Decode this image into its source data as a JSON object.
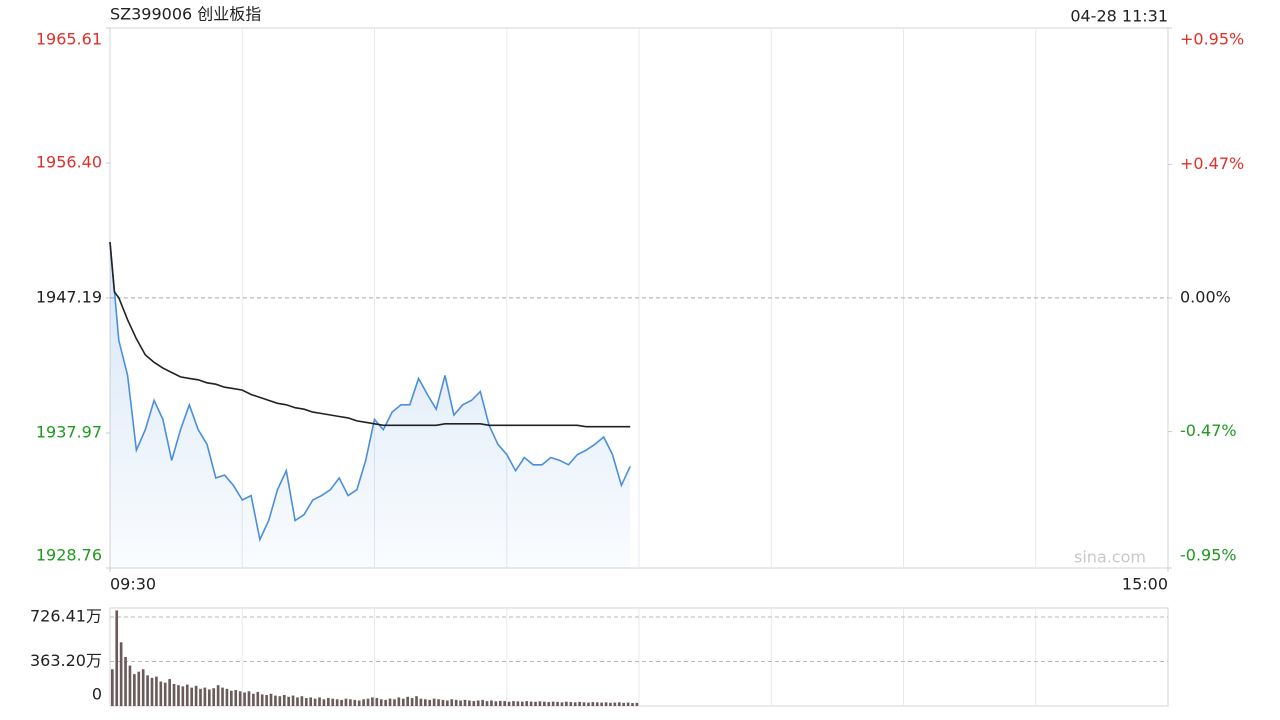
{
  "header": {
    "title": "SZ399006 创业板指",
    "timestamp": "04-28 11:31",
    "watermark": "sina.com"
  },
  "chart_data": [
    {
      "type": "line",
      "xlim": [
        0,
        240
      ],
      "xticks": [
        {
          "value": 0,
          "label": "09:30"
        },
        {
          "value": 240,
          "label": "15:00"
        }
      ],
      "ylim": [
        1928.76,
        1965.61
      ],
      "yticks": [
        1928.76,
        1937.97,
        1947.19,
        {
          "value": 1956.4,
          "label": "1956.40"
        },
        1965.61
      ],
      "ytick_colors": [
        "#1f9a1f",
        "#1f9a1f",
        "#222222",
        "#e0302a",
        "#e0302a"
      ],
      "y2lim": [
        -0.95,
        0.95
      ],
      "y2ticks": [
        {
          "value": -0.95,
          "label": "-0.95%"
        },
        {
          "value": -0.47,
          "label": "-0.47%"
        },
        {
          "value": 0,
          "label": "0.00%"
        },
        {
          "value": 0.47,
          "label": "+0.47%"
        },
        {
          "value": 0.95,
          "label": "+0.95%"
        }
      ],
      "x": [
        0,
        1,
        2,
        4,
        6,
        8,
        10,
        12,
        14,
        16,
        18,
        20,
        22,
        24,
        26,
        28,
        30,
        32,
        34,
        36,
        38,
        40,
        42,
        44,
        46,
        48,
        50,
        52,
        54,
        56,
        58,
        60,
        62,
        64,
        66,
        68,
        70,
        72,
        74,
        76,
        78,
        80,
        82,
        84,
        86,
        88,
        90,
        92,
        94,
        96,
        98,
        100,
        102,
        104,
        106,
        108,
        110,
        112,
        114,
        116,
        118
      ],
      "series": [
        {
          "color": "#4a8fdc",
          "area": true,
          "values": [
            1951.0,
            1947.7,
            1944.3,
            1941.9,
            1936.8,
            1938.2,
            1940.2,
            1938.9,
            1936.1,
            1938.2,
            1939.9,
            1938.2,
            1937.2,
            1934.9,
            1935.1,
            1934.4,
            1933.4,
            1933.7,
            1930.7,
            1932.0,
            1934.1,
            1935.4,
            1932.0,
            1932.4,
            1933.4,
            1933.7,
            1934.1,
            1934.9,
            1933.7,
            1934.1,
            1936.1,
            1938.9,
            1938.2,
            1939.4,
            1939.9,
            1939.9,
            1941.7,
            1940.6,
            1939.6,
            1941.9,
            1939.2,
            1939.9,
            1940.2,
            1940.8,
            1938.5,
            1937.2,
            1936.5,
            1935.4,
            1936.3,
            1935.8,
            1935.8,
            1936.3,
            1936.1,
            1935.8,
            1936.5,
            1936.8,
            1937.2,
            1937.7,
            1936.5,
            1934.4,
            1935.7
          ]
        },
        {
          "color": "#222222",
          "area": false,
          "values": [
            1951.0,
            1947.6,
            1947.2,
            1945.7,
            1944.4,
            1943.3,
            1942.8,
            1942.4,
            1942.1,
            1941.8,
            1941.7,
            1941.6,
            1941.4,
            1941.3,
            1941.1,
            1941.0,
            1940.9,
            1940.6,
            1940.4,
            1940.2,
            1940.0,
            1939.9,
            1939.7,
            1939.6,
            1939.4,
            1939.3,
            1939.2,
            1939.1,
            1939.0,
            1938.8,
            1938.7,
            1938.6,
            1938.5,
            1938.5,
            1938.5,
            1938.5,
            1938.5,
            1938.5,
            1938.5,
            1938.6,
            1938.6,
            1938.6,
            1938.6,
            1938.6,
            1938.5,
            1938.5,
            1938.5,
            1938.5,
            1938.5,
            1938.5,
            1938.5,
            1938.5,
            1938.5,
            1938.5,
            1938.5,
            1938.4,
            1938.4,
            1938.4,
            1938.4,
            1938.4,
            1938.4
          ]
        }
      ]
    },
    {
      "type": "bar",
      "xlim": [
        0,
        240
      ],
      "ylim": [
        0,
        800
      ],
      "yticks": [
        0,
        {
          "value": 363.2,
          "label": "363.20万"
        },
        {
          "value": 726.41,
          "label": "726.41万"
        }
      ],
      "color": "#6b5a5a",
      "x": [
        0,
        1,
        2,
        3,
        4,
        5,
        6,
        7,
        8,
        9,
        10,
        11,
        12,
        13,
        14,
        15,
        16,
        17,
        18,
        19,
        20,
        21,
        22,
        23,
        24,
        25,
        26,
        27,
        28,
        29,
        30,
        31,
        32,
        33,
        34,
        35,
        36,
        37,
        38,
        39,
        40,
        41,
        42,
        43,
        44,
        45,
        46,
        47,
        48,
        49,
        50,
        51,
        52,
        53,
        54,
        55,
        56,
        57,
        58,
        59,
        60,
        61,
        62,
        63,
        64,
        65,
        66,
        67,
        68,
        69,
        70,
        71,
        72,
        73,
        74,
        75,
        76,
        77,
        78,
        79,
        80,
        81,
        82,
        83,
        84,
        85,
        86,
        87,
        88,
        89,
        90,
        91,
        92,
        93,
        94,
        95,
        96,
        97,
        98,
        99,
        100,
        101,
        102,
        103,
        104,
        105,
        106,
        107,
        108,
        109,
        110,
        111,
        112,
        113,
        114,
        115,
        116,
        117,
        118,
        119
      ],
      "values": [
        300,
        780,
        520,
        400,
        330,
        260,
        280,
        300,
        250,
        230,
        240,
        200,
        190,
        220,
        180,
        170,
        160,
        175,
        150,
        165,
        140,
        150,
        135,
        145,
        170,
        150,
        140,
        125,
        130,
        120,
        110,
        120,
        100,
        115,
        95,
        90,
        100,
        85,
        80,
        90,
        75,
        85,
        70,
        80,
        65,
        70,
        60,
        70,
        55,
        65,
        60,
        55,
        50,
        60,
        55,
        50,
        45,
        55,
        60,
        70,
        65,
        55,
        50,
        60,
        55,
        70,
        60,
        75,
        65,
        80,
        60,
        55,
        50,
        60,
        55,
        50,
        45,
        55,
        50,
        45,
        50,
        45,
        40,
        45,
        50,
        40,
        45,
        38,
        42,
        40,
        35,
        40,
        38,
        35,
        40,
        36,
        34,
        38,
        35,
        32,
        36,
        34,
        30,
        35,
        32,
        30,
        34,
        30,
        28,
        32,
        30,
        28,
        30,
        26,
        28,
        30,
        26,
        28,
        24,
        26
      ]
    }
  ]
}
